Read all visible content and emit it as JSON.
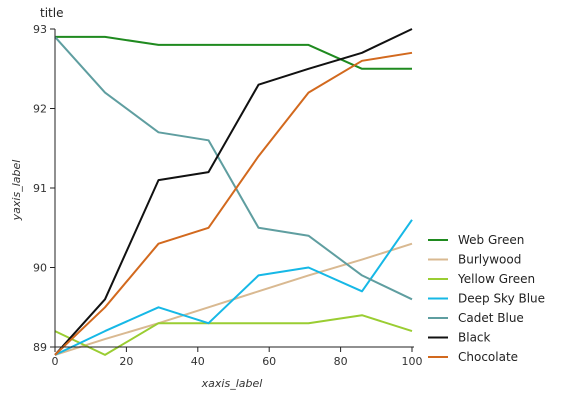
{
  "chart_data": {
    "type": "line",
    "title": "title",
    "xlabel": "xaxis_label",
    "ylabel": "yaxis_label",
    "xlim": [
      0,
      100
    ],
    "ylim": [
      89,
      93
    ],
    "x_ticks": [
      0,
      20,
      40,
      60,
      80,
      100
    ],
    "y_ticks": [
      89,
      90,
      91,
      92,
      93
    ],
    "grid": false,
    "legend_position": "right",
    "x": [
      0,
      14,
      29,
      43,
      57,
      71,
      86,
      100
    ],
    "series": [
      {
        "name": "Web Green",
        "color": "#1f8a1f",
        "values": [
          92.9,
          92.9,
          92.8,
          92.8,
          92.8,
          92.8,
          92.5,
          92.5
        ]
      },
      {
        "name": "Burlywood",
        "color": "#d9b991",
        "values": [
          88.9,
          89.1,
          89.3,
          89.5,
          89.7,
          89.9,
          90.1,
          90.3
        ]
      },
      {
        "name": "Yellow Green",
        "color": "#9acd32",
        "values": [
          89.2,
          88.9,
          89.3,
          89.3,
          89.3,
          89.3,
          89.4,
          89.2
        ]
      },
      {
        "name": "Deep Sky Blue",
        "color": "#16b8e6",
        "values": [
          88.9,
          89.2,
          89.5,
          89.3,
          89.9,
          90.0,
          89.7,
          90.6
        ]
      },
      {
        "name": "Cadet Blue",
        "color": "#5f9ea0",
        "values": [
          92.9,
          92.2,
          91.7,
          91.6,
          90.5,
          90.4,
          89.9,
          89.6
        ]
      },
      {
        "name": "Black",
        "color": "#111111",
        "values": [
          88.9,
          89.6,
          91.1,
          91.2,
          92.3,
          92.5,
          92.7,
          93.0
        ]
      },
      {
        "name": "Chocolate",
        "color": "#d2691e",
        "values": [
          88.9,
          89.5,
          90.3,
          90.5,
          91.4,
          92.2,
          92.6,
          92.7
        ]
      }
    ]
  }
}
